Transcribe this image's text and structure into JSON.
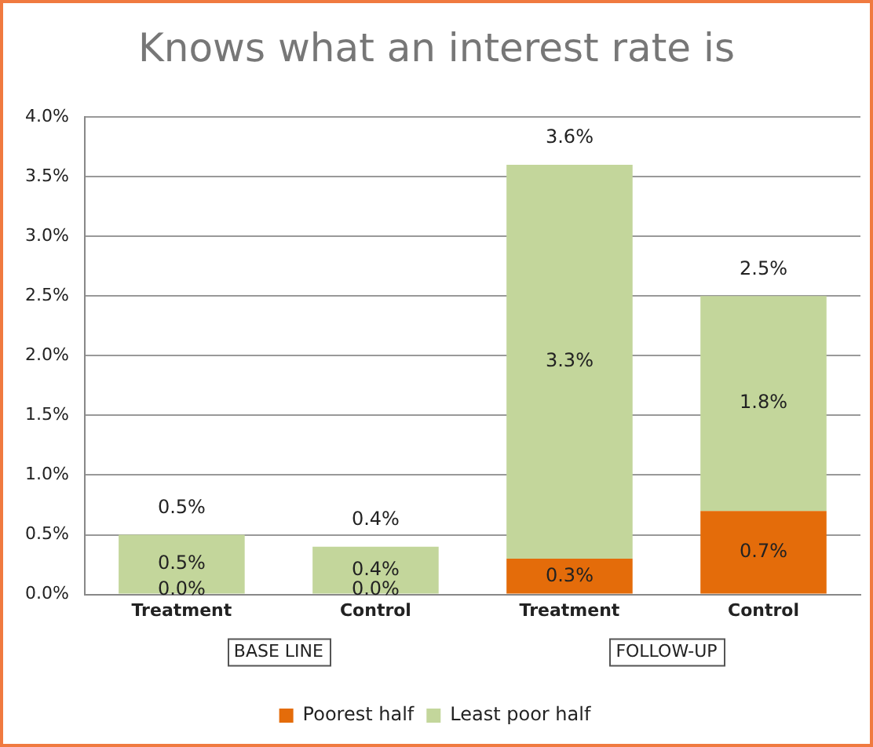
{
  "chart_data": {
    "type": "bar",
    "title": "Knows what an interest rate is",
    "categories": [
      "Treatment",
      "Control",
      "Treatment",
      "Control"
    ],
    "stacked": true,
    "series": [
      {
        "name": "Poorest half",
        "color": "#e46c0a",
        "values": [
          0,
          0,
          0.3,
          0.7
        ],
        "value_labels": [
          "0.0%",
          "0.0%",
          "0.3%",
          "0.7%"
        ]
      },
      {
        "name": "Least poor half",
        "color": "#c3d69b",
        "values": [
          0.5,
          0.4,
          3.3,
          1.8
        ],
        "value_labels": [
          "0.5%",
          "0.4%",
          "3.3%",
          "1.8%"
        ]
      }
    ],
    "totals": [
      "0.5%",
      "0.4%",
      "3.6%",
      "2.5%"
    ],
    "ylim": [
      0,
      4
    ],
    "yticks": [
      {
        "value": 0,
        "label": "0.0%"
      },
      {
        "value": 0.5,
        "label": "0.5%"
      },
      {
        "value": 1,
        "label": "1.0%"
      },
      {
        "value": 1.5,
        "label": "1.5%"
      },
      {
        "value": 2,
        "label": "2.0%"
      },
      {
        "value": 2.5,
        "label": "2.5%"
      },
      {
        "value": 3,
        "label": "3.0%"
      },
      {
        "value": 3.5,
        "label": "3.5%"
      },
      {
        "value": 4,
        "label": "4.0%"
      }
    ],
    "grid": "y",
    "legend": "bottom",
    "annotations": [
      "BASE LINE",
      "FOLLOW-UP"
    ]
  }
}
